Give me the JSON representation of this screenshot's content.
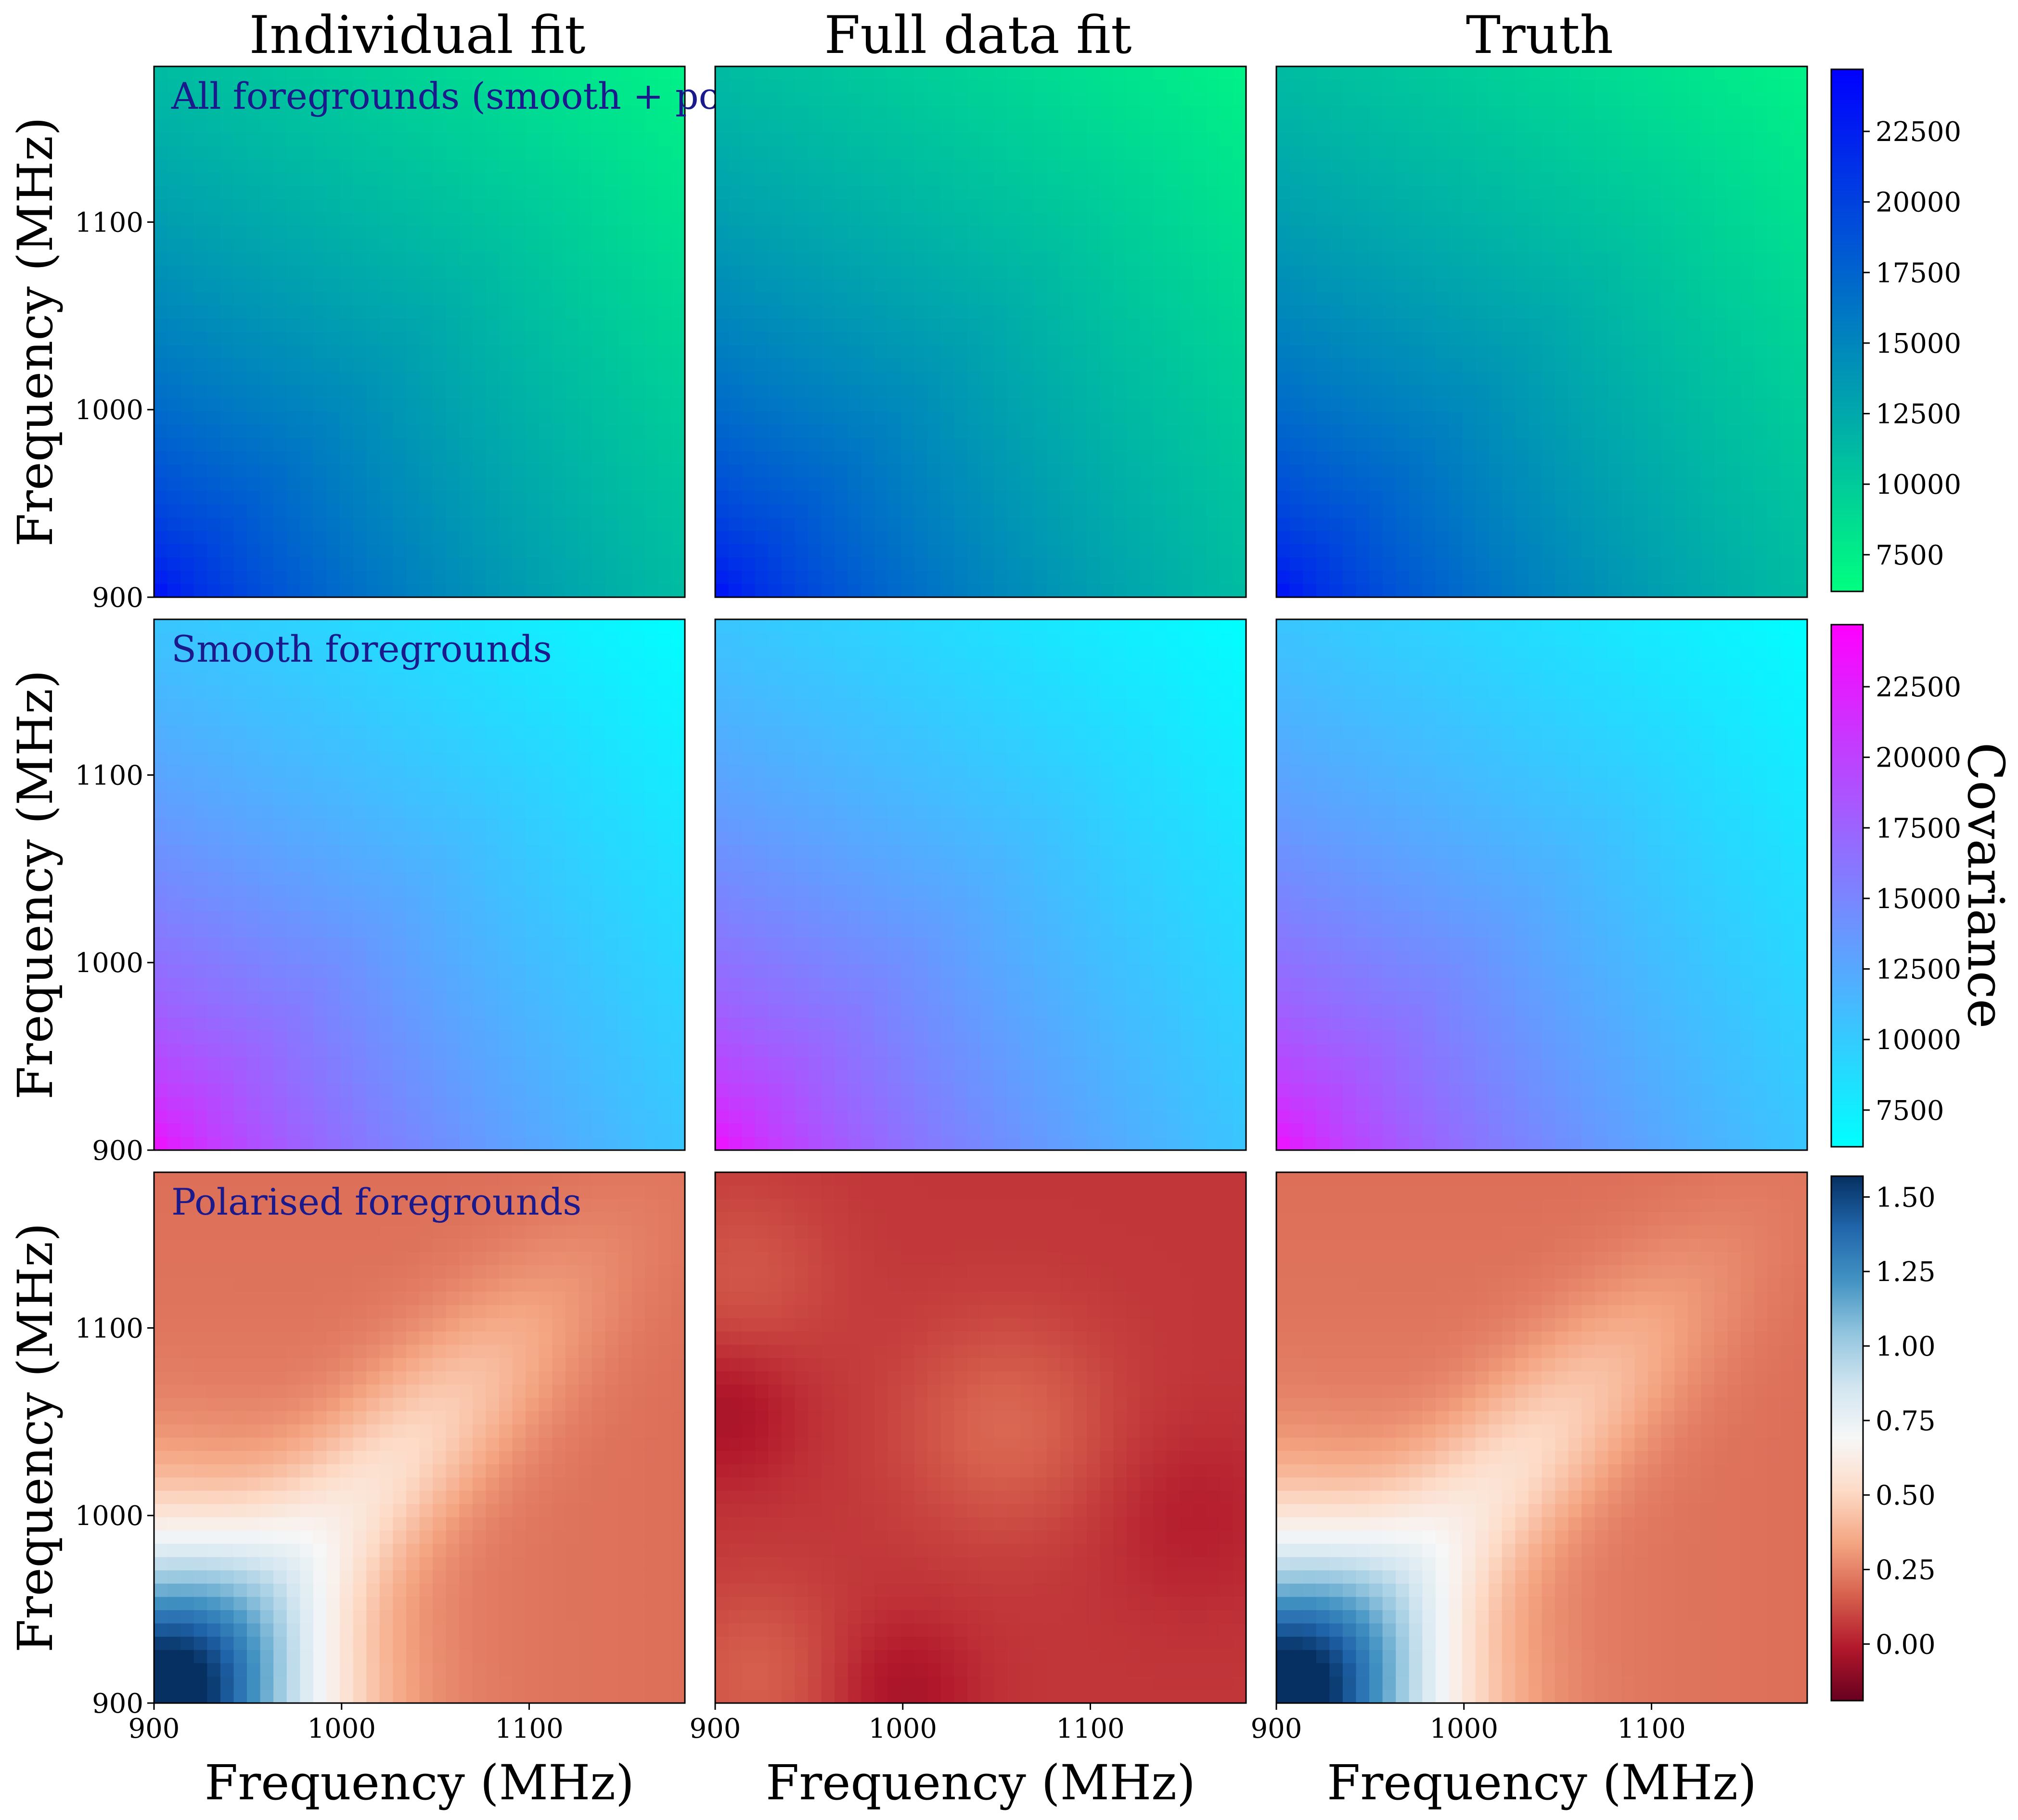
{
  "columns": [
    "Individual fit",
    "Full data fit",
    "Truth"
  ],
  "axis_label": "Frequency (MHz)",
  "colorbar_label": "Covariance",
  "chart_data": [
    {
      "type": "heatmap",
      "row": "All foregrounds (smooth + pol)",
      "colormap": "winter",
      "colors": [
        "#00ff80",
        "#0000ff"
      ],
      "xlim": [
        900,
        1183
      ],
      "ylim": [
        900,
        1183
      ],
      "xticks": [
        900,
        1000,
        1100
      ],
      "yticks": [
        900,
        1000,
        1100
      ],
      "clim": [
        6200,
        24700
      ],
      "colorbar_ticks": [
        7500,
        10000,
        12500,
        15000,
        17500,
        20000,
        22500
      ],
      "panels": [
        {
          "column": "Individual fit",
          "label": "All foregrounds (smooth + pol)",
          "corner_min_freq_value": 24700,
          "corner_max_freq_value": 6200
        },
        {
          "column": "Full data fit",
          "label": "",
          "corner_min_freq_value": 24700,
          "corner_max_freq_value": 6200
        },
        {
          "column": "Truth",
          "label": "",
          "corner_min_freq_value": 24700,
          "corner_max_freq_value": 6200
        }
      ]
    },
    {
      "type": "heatmap",
      "row": "Smooth foregrounds",
      "colormap": "cool",
      "colors": [
        "#00ffff",
        "#ff00ff"
      ],
      "xlim": [
        900,
        1183
      ],
      "ylim": [
        900,
        1183
      ],
      "xticks": [
        900,
        1000,
        1100
      ],
      "yticks": [
        900,
        1000,
        1100
      ],
      "clim": [
        6200,
        24700
      ],
      "colorbar_ticks": [
        7500,
        10000,
        12500,
        15000,
        17500,
        20000,
        22500
      ],
      "panels": [
        {
          "column": "Individual fit",
          "label": "Smooth foregrounds",
          "corner_min_freq_value": 24700,
          "corner_max_freq_value": 6200
        },
        {
          "column": "Full data fit",
          "label": "",
          "corner_min_freq_value": 24700,
          "corner_max_freq_value": 6200
        },
        {
          "column": "Truth",
          "label": "",
          "corner_min_freq_value": 24700,
          "corner_max_freq_value": 6200
        }
      ]
    },
    {
      "type": "heatmap",
      "row": "Polarised foregrounds",
      "colormap": "RdBu",
      "colors": [
        "#67001f",
        "#b2182b",
        "#d6604d",
        "#f4a582",
        "#fddbc7",
        "#f7f7f7",
        "#d1e5f0",
        "#92c5de",
        "#4393c3",
        "#2166ac",
        "#053061"
      ],
      "xlim": [
        900,
        1183
      ],
      "ylim": [
        900,
        1183
      ],
      "xticks": [
        900,
        1000,
        1100
      ],
      "yticks": [
        900,
        1000,
        1100
      ],
      "clim": [
        -0.19,
        1.57
      ],
      "colorbar_ticks": [
        0.0,
        0.25,
        0.5,
        0.75,
        1.0,
        1.25,
        1.5
      ],
      "panels": [
        {
          "column": "Individual fit",
          "label": "Polarised foregrounds",
          "peak_at": [
            900,
            900
          ],
          "peak_value": 1.57,
          "background_value": 0.25,
          "diagonal_value": 0.5
        },
        {
          "column": "Full data fit",
          "label": "",
          "range": [
            -0.19,
            0.3
          ]
        },
        {
          "column": "Truth",
          "label": "",
          "peak_at": [
            900,
            900
          ],
          "peak_value": 1.57,
          "background_value": 0.25,
          "diagonal_value": 0.5
        }
      ]
    }
  ]
}
